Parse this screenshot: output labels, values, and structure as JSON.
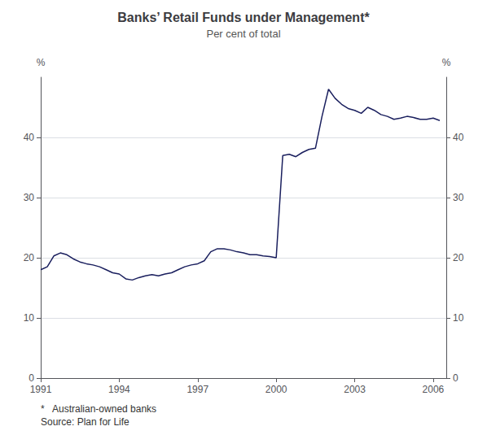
{
  "chart_data": {
    "type": "line",
    "title": "Banks’ Retail Funds under Management*",
    "subtitle": "Per cent of total",
    "ylabel": "%",
    "y2label": "%",
    "annotations": [
      "*   Australian-owned banks",
      "Source: Plan for Life"
    ],
    "color": "#1a1f5e",
    "xlim": [
      1991.0,
      2006.5
    ],
    "xticks": [
      1991,
      1994,
      1997,
      2000,
      2003,
      2006
    ],
    "ylim": [
      0,
      50
    ],
    "yticks": [
      0,
      10,
      20,
      30,
      40
    ],
    "y2lim": [
      0,
      50
    ],
    "y2ticks": [
      0,
      10,
      20,
      30,
      40
    ],
    "grid": true,
    "x": [
      1991.0,
      1991.25,
      1991.5,
      1991.75,
      1992.0,
      1992.25,
      1992.5,
      1992.75,
      1993.0,
      1993.25,
      1993.5,
      1993.75,
      1994.0,
      1994.25,
      1994.5,
      1994.75,
      1995.0,
      1995.25,
      1995.5,
      1995.75,
      1996.0,
      1996.25,
      1996.5,
      1996.75,
      1997.0,
      1997.25,
      1997.5,
      1997.75,
      1998.0,
      1998.25,
      1998.5,
      1998.75,
      1999.0,
      1999.25,
      1999.5,
      1999.75,
      2000.0,
      2000.25,
      2000.5,
      2000.75,
      2001.0,
      2001.25,
      2001.5,
      2001.75,
      2002.0,
      2002.25,
      2002.5,
      2002.75,
      2003.0,
      2003.25,
      2003.5,
      2003.75,
      2004.0,
      2004.25,
      2004.5,
      2004.75,
      2005.0,
      2005.25,
      2005.5,
      2005.75,
      2006.0,
      2006.25
    ],
    "values": [
      18.0,
      18.5,
      20.3,
      20.8,
      20.5,
      19.8,
      19.3,
      19.0,
      18.8,
      18.5,
      18.0,
      17.5,
      17.3,
      16.5,
      16.3,
      16.7,
      17.0,
      17.2,
      17.0,
      17.3,
      17.5,
      18.0,
      18.5,
      18.8,
      19.0,
      19.5,
      21.0,
      21.5,
      21.5,
      21.3,
      21.0,
      20.8,
      20.5,
      20.5,
      20.3,
      20.2,
      20.0,
      37.0,
      37.2,
      36.8,
      37.5,
      38.0,
      38.2,
      43.5,
      48.0,
      46.5,
      45.5,
      44.8,
      44.5,
      44.0,
      45.0,
      44.5,
      43.8,
      43.5,
      43.0,
      43.2,
      43.5,
      43.3,
      43.0,
      43.0,
      43.2,
      42.8
    ]
  }
}
